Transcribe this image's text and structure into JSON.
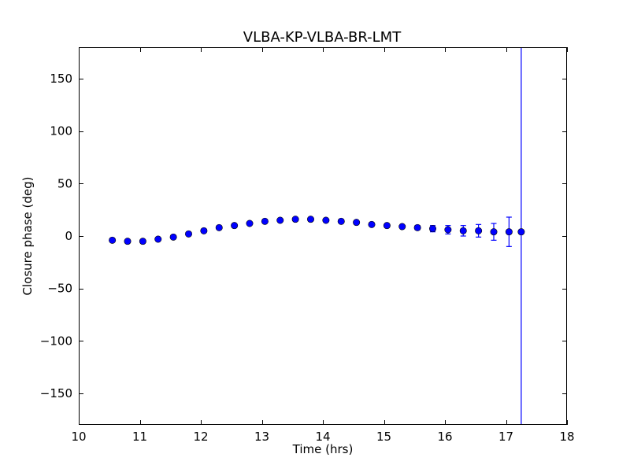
{
  "chart_data": {
    "type": "scatter",
    "title": "VLBA-KP-VLBA-BR-LMT",
    "xlabel": "Time (hrs)",
    "ylabel": "Closure phase (deg)",
    "xlim": [
      10,
      18
    ],
    "ylim": [
      -180,
      180
    ],
    "x_ticks": [
      10,
      11,
      12,
      13,
      14,
      15,
      16,
      17,
      18
    ],
    "x_tick_labels": [
      "10",
      "11",
      "12",
      "13",
      "14",
      "15",
      "16",
      "17",
      "18"
    ],
    "y_ticks": [
      150,
      100,
      50,
      0,
      -50,
      -100,
      -150
    ],
    "y_tick_labels": [
      "150",
      "100",
      "50",
      "0",
      "−50",
      "−100",
      "−150"
    ],
    "grid": false,
    "legend": "none",
    "series": [
      {
        "color": "#0000ff",
        "marker": "circle",
        "points": [
          {
            "x": 10.55,
            "y": -4,
            "err": 1
          },
          {
            "x": 10.8,
            "y": -5,
            "err": 1
          },
          {
            "x": 11.05,
            "y": -5,
            "err": 1
          },
          {
            "x": 11.3,
            "y": -3,
            "err": 1
          },
          {
            "x": 11.55,
            "y": -1,
            "err": 1
          },
          {
            "x": 11.8,
            "y": 2,
            "err": 1
          },
          {
            "x": 12.05,
            "y": 5,
            "err": 1
          },
          {
            "x": 12.3,
            "y": 8,
            "err": 1
          },
          {
            "x": 12.55,
            "y": 10,
            "err": 1
          },
          {
            "x": 12.8,
            "y": 12,
            "err": 1
          },
          {
            "x": 13.05,
            "y": 14,
            "err": 1
          },
          {
            "x": 13.3,
            "y": 15,
            "err": 1
          },
          {
            "x": 13.55,
            "y": 16,
            "err": 1
          },
          {
            "x": 13.8,
            "y": 16,
            "err": 1
          },
          {
            "x": 14.05,
            "y": 15,
            "err": 1
          },
          {
            "x": 14.3,
            "y": 14,
            "err": 1
          },
          {
            "x": 14.55,
            "y": 13,
            "err": 1
          },
          {
            "x": 14.8,
            "y": 11,
            "err": 1
          },
          {
            "x": 15.05,
            "y": 10,
            "err": 1
          },
          {
            "x": 15.3,
            "y": 9,
            "err": 1
          },
          {
            "x": 15.55,
            "y": 8,
            "err": 2
          },
          {
            "x": 15.8,
            "y": 7,
            "err": 3
          },
          {
            "x": 16.05,
            "y": 6,
            "err": 4
          },
          {
            "x": 16.3,
            "y": 5,
            "err": 5
          },
          {
            "x": 16.55,
            "y": 5,
            "err": 6
          },
          {
            "x": 16.8,
            "y": 4,
            "err": 8
          },
          {
            "x": 17.05,
            "y": 4,
            "err": 14
          },
          {
            "x": 17.25,
            "y": 4,
            "err": 200
          }
        ]
      }
    ]
  }
}
